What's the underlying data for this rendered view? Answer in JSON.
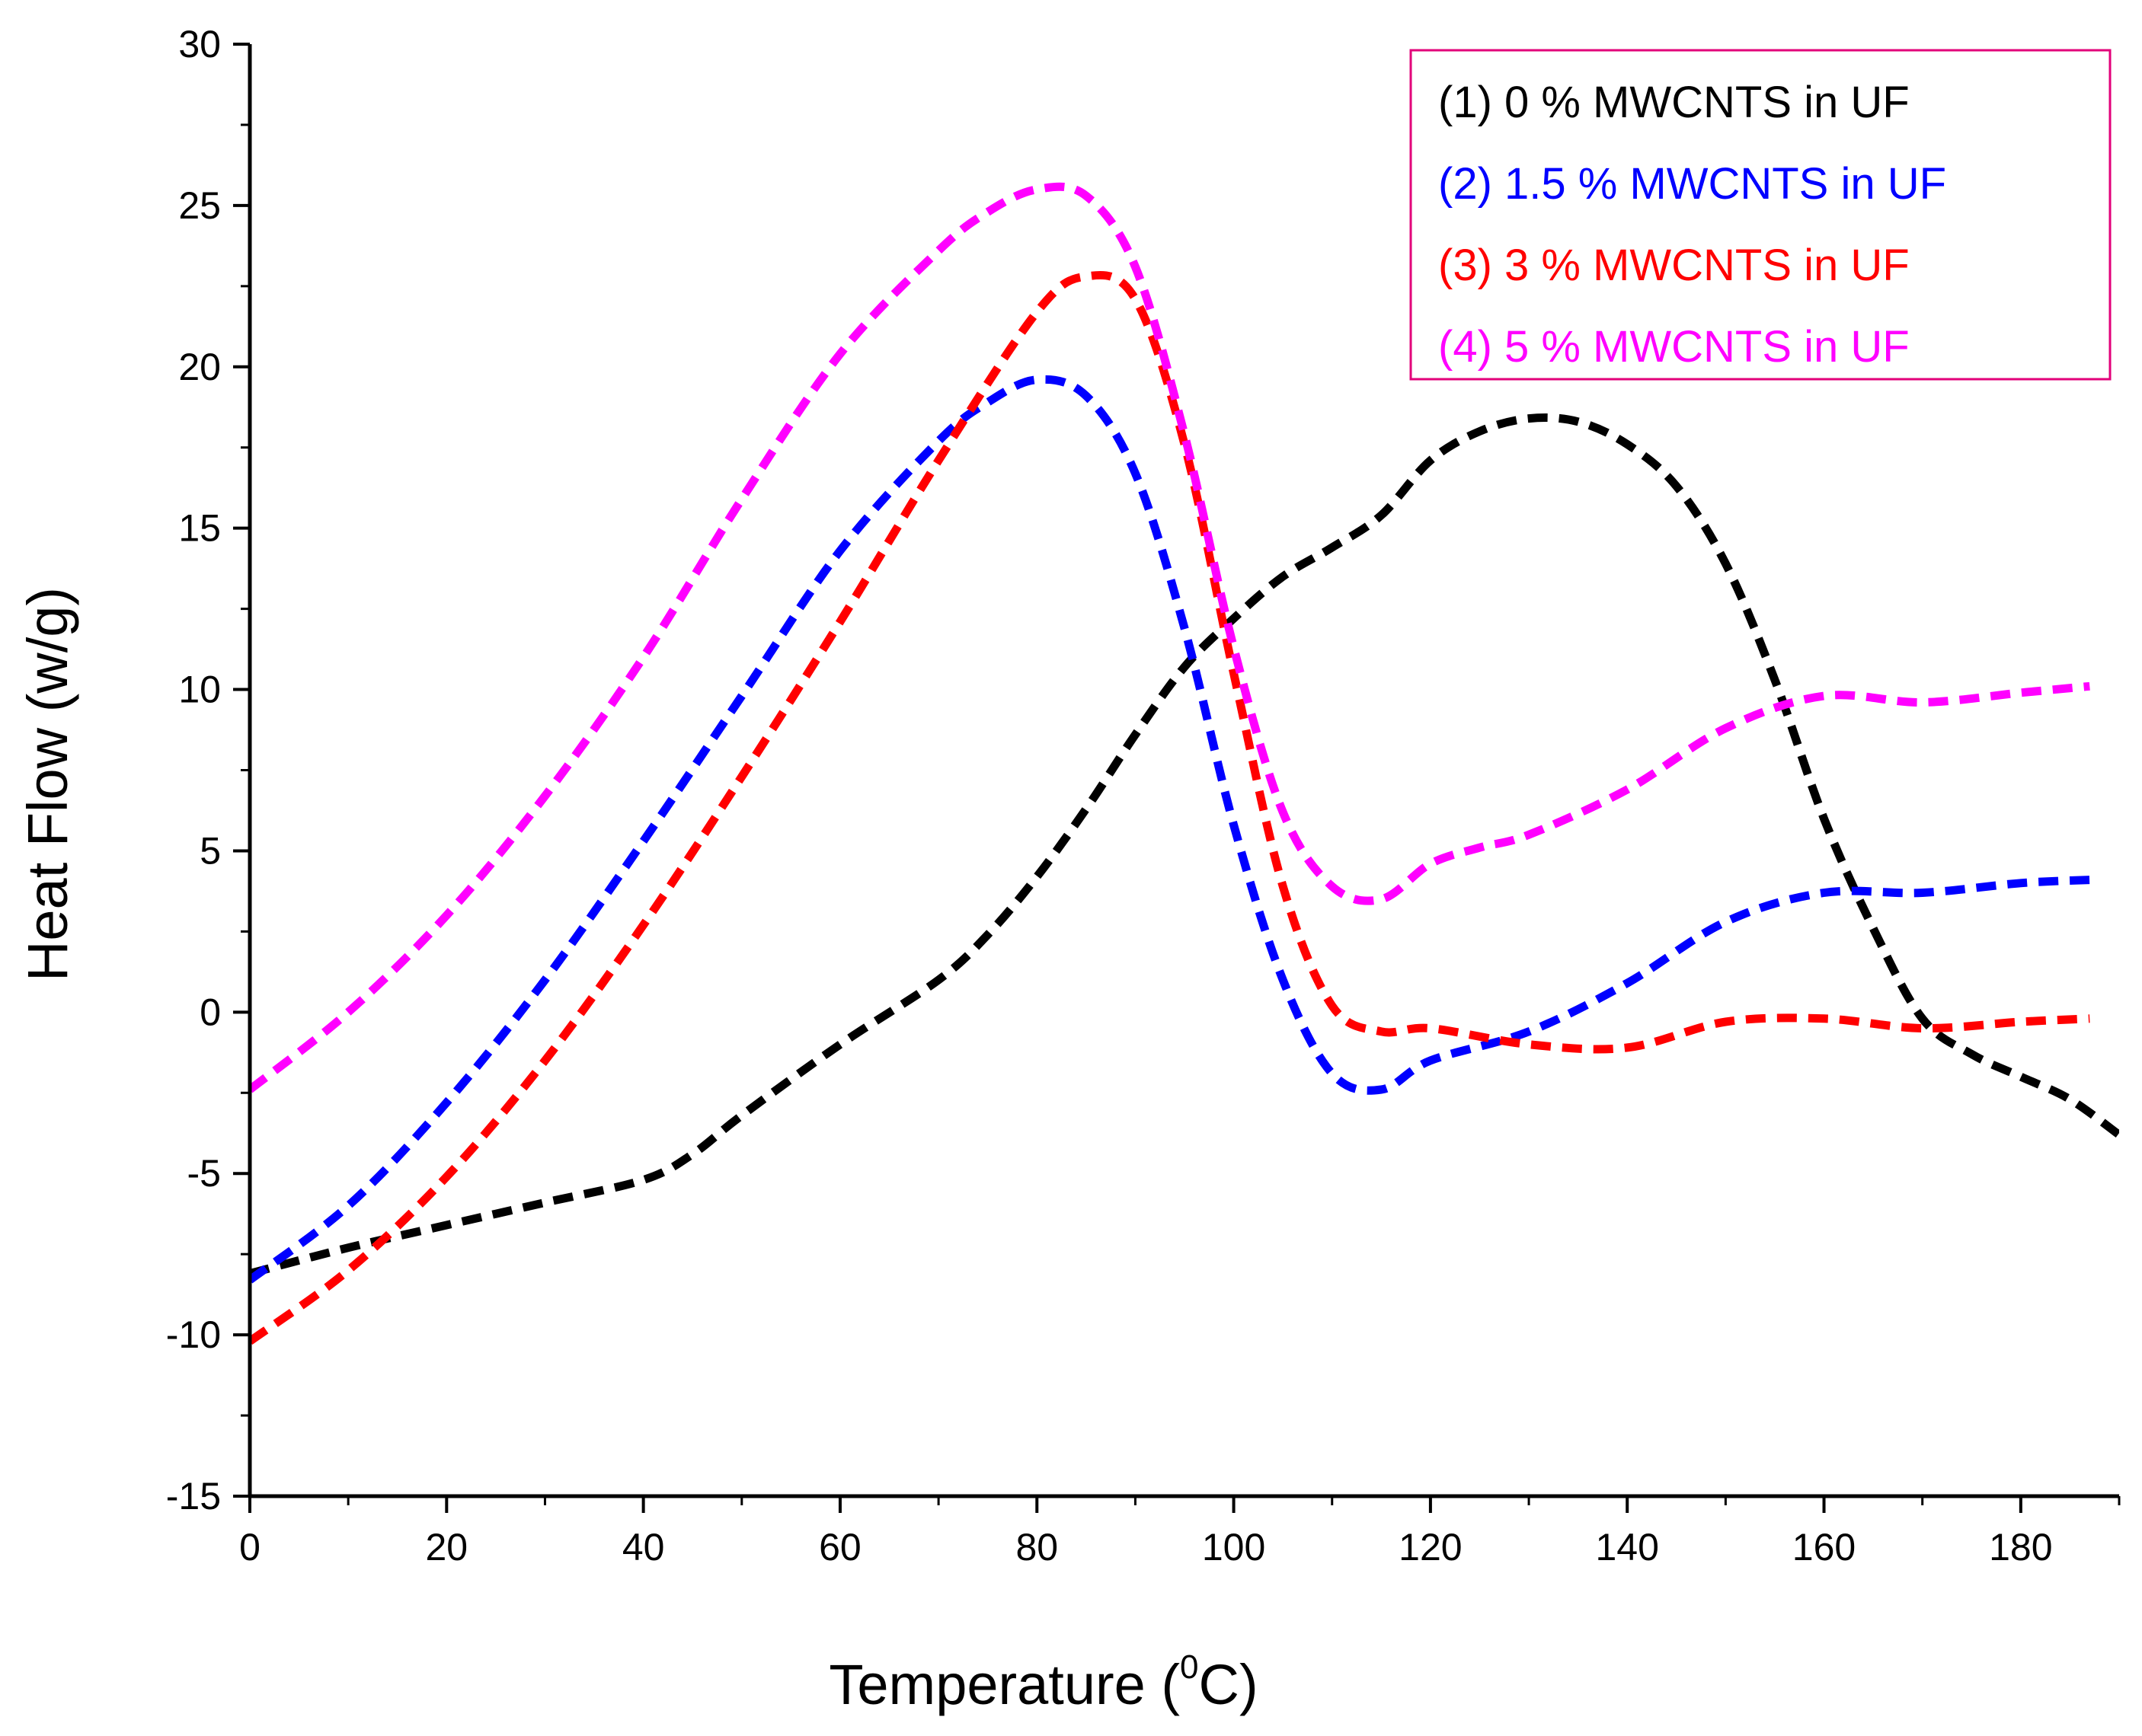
{
  "chart_data": {
    "type": "line",
    "title": "",
    "xlabel": "Temperature (",
    "xlabel_sup": "0",
    "xlabel_tail": "C)",
    "ylabel": "Heat Flow (w/g)",
    "xlim": [
      0,
      190
    ],
    "ylim": [
      -15,
      30
    ],
    "xticks": [
      0,
      20,
      40,
      60,
      80,
      100,
      120,
      140,
      160,
      180
    ],
    "xtick_labels": [
      "0",
      "20",
      "40",
      "60",
      "80",
      "100",
      "120",
      "140",
      "160",
      "180"
    ],
    "yticks": [
      -15,
      -10,
      -5,
      0,
      5,
      10,
      15,
      20,
      25,
      30
    ],
    "ytick_labels": [
      "-15",
      "-10",
      "-5",
      "0",
      "5",
      "10",
      "15",
      "20",
      "25",
      "30"
    ],
    "grid": false,
    "legend_position": "top-right",
    "series": [
      {
        "name": "(1) 0 % MWCNTS in UF",
        "color": "#000000",
        "x": [
          0,
          10,
          20,
          30,
          40,
          45,
          50,
          60,
          70,
          75,
          80,
          85,
          90,
          95,
          100,
          105,
          110,
          115,
          120,
          125,
          130,
          135,
          140,
          145,
          150,
          155,
          160,
          165,
          170,
          175,
          180,
          185,
          190
        ],
        "y": [
          -8.1,
          -7.3,
          -6.6,
          -5.9,
          -5.2,
          -4.4,
          -3.2,
          -1.0,
          1.0,
          2.4,
          4.2,
          6.3,
          8.6,
          10.7,
          12.2,
          13.5,
          14.4,
          15.4,
          17.1,
          18.0,
          18.4,
          18.3,
          17.6,
          16.3,
          13.9,
          10.3,
          6.0,
          2.6,
          -0.2,
          -1.3,
          -2.0,
          -2.7,
          -3.8
        ]
      },
      {
        "name": "(2) 1.5 % MWCNTS in UF",
        "color": "#0000ff",
        "x": [
          0,
          10,
          20,
          30,
          40,
          50,
          60,
          70,
          75,
          80,
          85,
          90,
          95,
          100,
          105,
          110,
          115,
          120,
          130,
          140,
          150,
          160,
          170,
          180,
          187
        ],
        "y": [
          -8.3,
          -6.0,
          -2.8,
          1.0,
          5.3,
          9.8,
          14.3,
          17.7,
          18.9,
          19.6,
          19.1,
          16.7,
          11.9,
          5.8,
          1.0,
          -1.9,
          -2.4,
          -1.5,
          -0.6,
          0.9,
          2.8,
          3.7,
          3.7,
          4.0,
          4.1
        ]
      },
      {
        "name": "(3) 3 % MWCNTS in UF",
        "color": "#ff0000",
        "x": [
          0,
          10,
          20,
          30,
          40,
          50,
          60,
          70,
          80,
          85,
          90,
          95,
          100,
          105,
          110,
          115,
          120,
          130,
          140,
          150,
          160,
          170,
          180,
          187
        ],
        "y": [
          -10.2,
          -8.0,
          -5.1,
          -1.5,
          2.7,
          7.3,
          12.1,
          17.1,
          21.7,
          22.8,
          22.1,
          17.6,
          10.5,
          3.9,
          0.2,
          -0.6,
          -0.5,
          -1.0,
          -1.1,
          -0.3,
          -0.2,
          -0.5,
          -0.3,
          -0.2
        ]
      },
      {
        "name": "(4) 5 % MWCNTS in UF",
        "color": "#ff00ff",
        "x": [
          0,
          10,
          20,
          30,
          40,
          50,
          60,
          70,
          75,
          80,
          85,
          90,
          95,
          100,
          105,
          110,
          115,
          120,
          125,
          130,
          140,
          150,
          160,
          170,
          180,
          187
        ],
        "y": [
          -2.4,
          0.0,
          3.0,
          6.7,
          11.0,
          15.9,
          20.4,
          23.6,
          24.8,
          25.5,
          25.3,
          23.1,
          17.9,
          11.3,
          6.2,
          3.9,
          3.5,
          4.6,
          5.1,
          5.5,
          6.9,
          8.8,
          9.8,
          9.6,
          9.9,
          10.1
        ]
      }
    ]
  },
  "legend": {
    "border_color": "#e2007a"
  }
}
